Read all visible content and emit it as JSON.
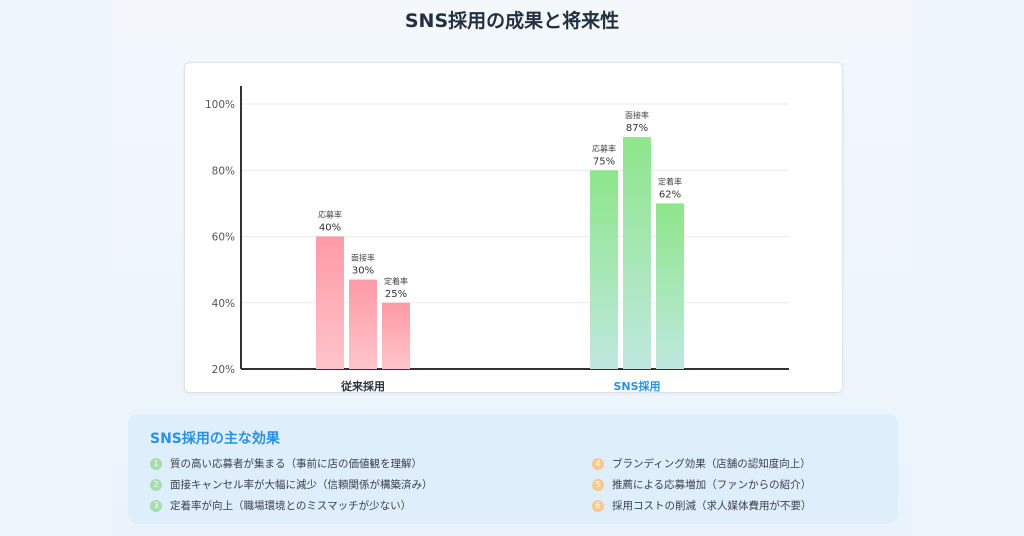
{
  "title": "SNS採用の成果と将来性",
  "chart_data": {
    "type": "bar",
    "categories": [
      "従来採用",
      "SNS採用"
    ],
    "series": [
      {
        "name": "応募率",
        "values": [
          40,
          75
        ]
      },
      {
        "name": "面接率",
        "values": [
          30,
          87
        ]
      },
      {
        "name": "定着率",
        "values": [
          25,
          62
        ]
      }
    ],
    "bar_heights_on_axis": [
      [
        60,
        80
      ],
      [
        47,
        90
      ],
      [
        40,
        70
      ]
    ],
    "ylim": [
      20,
      100
    ],
    "yticks": [
      "20%",
      "40%",
      "60%",
      "80%",
      "100%"
    ],
    "ytick_values": [
      20,
      40,
      60,
      80,
      100
    ],
    "grid": true,
    "category_label_colors": [
      "#2b3442",
      "#2a92e0"
    ],
    "colors": {
      "traditional_top": "#ff9aa5",
      "traditional_bottom": "#ffc4cb",
      "sns_top": "#8ee68a",
      "sns_bottom": "#bfe8e0"
    }
  },
  "effects": {
    "title": "SNS採用の主な効果",
    "items": [
      {
        "num": "1",
        "text": "質の高い応募者が集まる（事前に店の価値観を理解）",
        "color": "green"
      },
      {
        "num": "2",
        "text": "面接キャンセル率が大幅に減少（信頼関係が構築済み）",
        "color": "green"
      },
      {
        "num": "3",
        "text": "定着率が向上（職場環境とのミスマッチが少ない）",
        "color": "green"
      },
      {
        "num": "4",
        "text": "ブランディング効果（店舗の認知度向上）",
        "color": "orange"
      },
      {
        "num": "5",
        "text": "推薦による応募増加（ファンからの紹介）",
        "color": "orange"
      },
      {
        "num": "6",
        "text": "採用コストの削減（求人媒体費用が不要）",
        "color": "orange"
      }
    ]
  }
}
